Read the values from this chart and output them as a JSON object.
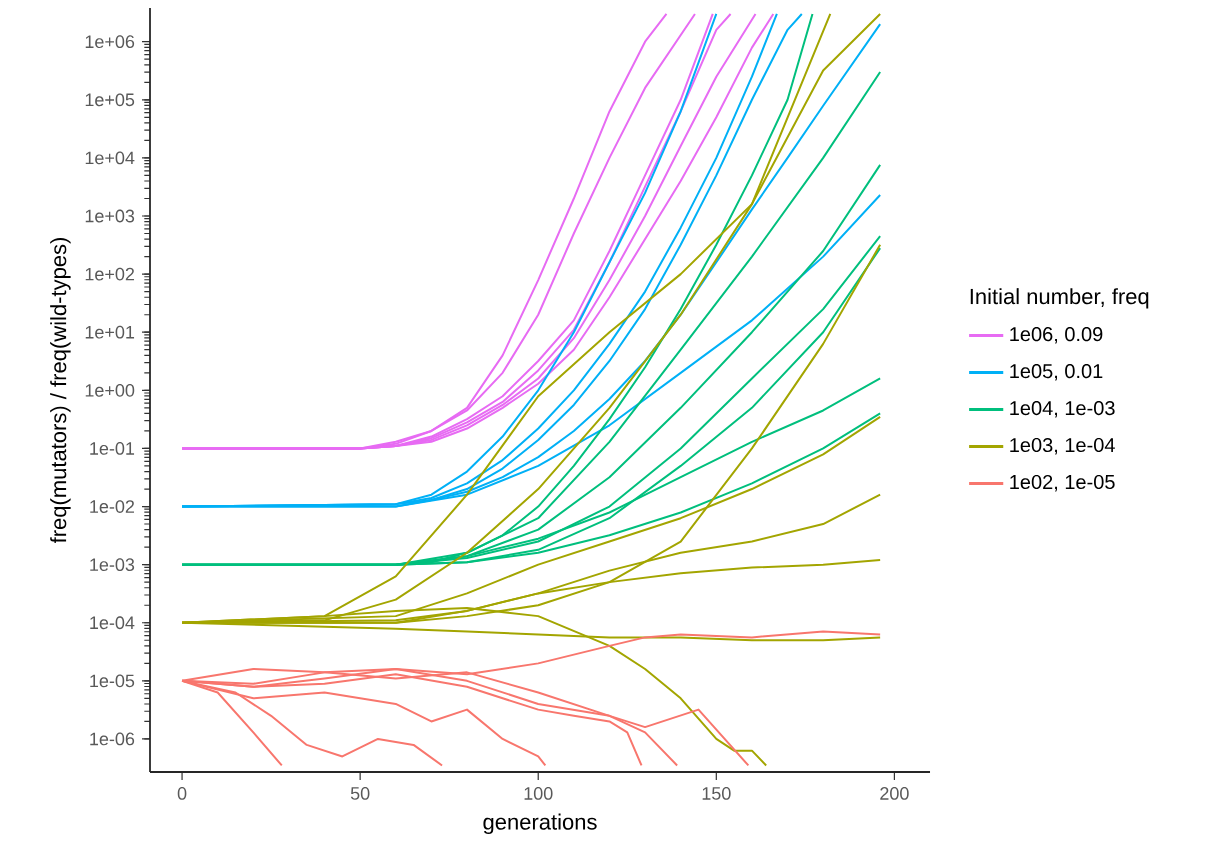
{
  "chart_data": {
    "type": "line",
    "xlabel": "generations",
    "ylabel": "freq(mutators) / freq(wild-types)",
    "legend_title": "Initial number, freq",
    "legend": "right",
    "log": "y",
    "grid": false,
    "xlim": [
      -9,
      210
    ],
    "xticks": [
      0,
      50,
      100,
      150,
      200
    ],
    "ylim": [
      2.7e-07,
      3800000.0
    ],
    "yticks": [
      {
        "value": 1e-06,
        "label": "1e-06"
      },
      {
        "value": 1e-05,
        "label": "1e-05"
      },
      {
        "value": 0.0001,
        "label": "1e-04"
      },
      {
        "value": 0.001,
        "label": "1e-03"
      },
      {
        "value": 0.01,
        "label": "1e-02"
      },
      {
        "value": 0.1,
        "label": "1e-01"
      },
      {
        "value": 1,
        "label": "1e+00"
      },
      {
        "value": 10,
        "label": "1e+01"
      },
      {
        "value": 100,
        "label": "1e+02"
      },
      {
        "value": 1000,
        "label": "1e+03"
      },
      {
        "value": 10000.0,
        "label": "1e+04"
      },
      {
        "value": 100000.0,
        "label": "1e+05"
      },
      {
        "value": 1000000.0,
        "label": "1e+06"
      }
    ],
    "series": [
      {
        "name": "1e06, 0.09",
        "color": "#e76bf3",
        "x": [
          0,
          50,
          60,
          70,
          80,
          90,
          100,
          110,
          120,
          130,
          136
        ],
        "values": [
          0.1,
          0.1,
          0.12,
          0.2,
          0.5,
          4,
          79,
          2000,
          63000.0,
          1000000.0,
          3000000.0
        ]
      },
      {
        "color": "#e76bf3",
        "x": [
          0,
          50,
          60,
          70,
          80,
          90,
          100,
          110,
          120,
          130,
          140,
          149
        ],
        "values": [
          0.1,
          0.1,
          0.11,
          0.16,
          0.32,
          0.79,
          3.2,
          16,
          250,
          5000,
          100000.0,
          3000000.0
        ]
      },
      {
        "color": "#e76bf3",
        "x": [
          0,
          50,
          60,
          70,
          80,
          90,
          100,
          110,
          120,
          130,
          140,
          150,
          154
        ],
        "values": [
          0.1,
          0.1,
          0.11,
          0.15,
          0.28,
          0.63,
          2.2,
          11,
          160,
          3200,
          63000.0,
          1600000.0,
          3000000.0
        ]
      },
      {
        "color": "#e76bf3",
        "x": [
          0,
          50,
          60,
          70,
          80,
          90,
          100,
          110,
          120,
          130,
          144
        ],
        "values": [
          0.1,
          0.1,
          0.13,
          0.2,
          0.45,
          2,
          20,
          500,
          10000.0,
          160000.0,
          3000000.0
        ]
      },
      {
        "color": "#e76bf3",
        "x": [
          0,
          50,
          60,
          70,
          80,
          90,
          100,
          110,
          120,
          130,
          140,
          150,
          161
        ],
        "values": [
          0.1,
          0.1,
          0.11,
          0.14,
          0.25,
          0.56,
          1.6,
          7.9,
          79,
          1000,
          16000.0,
          250000.0,
          3000000.0
        ]
      },
      {
        "color": "#e76bf3",
        "x": [
          0,
          50,
          60,
          70,
          80,
          90,
          100,
          110,
          120,
          130,
          140,
          150,
          160,
          166
        ],
        "values": [
          0.1,
          0.1,
          0.11,
          0.13,
          0.22,
          0.5,
          1.3,
          5,
          40,
          400,
          4000,
          50000.0,
          790000.0,
          3000000.0
        ]
      },
      {
        "name": "1e05, 0.01",
        "color": "#00b0f6",
        "x": [
          0,
          60,
          70,
          80,
          90,
          100,
          110,
          120,
          130,
          140,
          150
        ],
        "values": [
          0.01,
          0.011,
          0.016,
          0.04,
          0.16,
          1,
          10,
          160,
          2500,
          63000.0,
          3000000.0
        ]
      },
      {
        "color": "#00b0f6",
        "x": [
          0,
          60,
          70,
          80,
          90,
          100,
          110,
          120,
          130,
          140,
          150,
          160,
          167
        ],
        "values": [
          0.01,
          0.011,
          0.014,
          0.025,
          0.063,
          0.22,
          1,
          6.3,
          50,
          630,
          10000.0,
          250000.0,
          3000000.0
        ]
      },
      {
        "color": "#00b0f6",
        "x": [
          0,
          60,
          70,
          80,
          90,
          100,
          110,
          120,
          130,
          140,
          150,
          160,
          170,
          174
        ],
        "values": [
          0.01,
          0.011,
          0.013,
          0.02,
          0.045,
          0.14,
          0.56,
          3.2,
          25,
          320,
          5000,
          100000.0,
          1600000.0,
          3000000.0
        ]
      },
      {
        "color": "#00b0f6",
        "x": [
          0,
          60,
          70,
          80,
          90,
          100,
          110,
          120,
          130,
          140,
          150,
          160,
          170,
          180,
          196
        ],
        "values": [
          0.01,
          0.01,
          0.013,
          0.018,
          0.032,
          0.071,
          0.2,
          0.71,
          3.2,
          20,
          160,
          1300,
          10000.0,
          79000.0,
          2000000.0
        ]
      },
      {
        "color": "#00b0f6",
        "x": [
          0,
          60,
          80,
          100,
          120,
          140,
          160,
          180,
          196
        ],
        "values": [
          0.01,
          0.01,
          0.016,
          0.05,
          0.25,
          2,
          16,
          200,
          2300
        ]
      },
      {
        "name": "1e04, 1e-03",
        "color": "#00bf7d",
        "x": [
          0,
          60,
          70,
          80,
          90,
          100,
          110,
          120,
          130,
          140,
          150,
          160,
          170,
          177
        ],
        "values": [
          0.001,
          0.001,
          0.0011,
          0.0016,
          0.0032,
          0.01,
          0.05,
          0.32,
          2.5,
          25,
          320,
          5000,
          100000.0,
          3000000.0
        ]
      },
      {
        "color": "#00bf7d",
        "x": [
          0,
          60,
          80,
          100,
          120,
          140,
          160,
          180,
          196
        ],
        "values": [
          0.001,
          0.001,
          0.0016,
          0.0063,
          0.13,
          5,
          200,
          10000.0,
          300000.0
        ]
      },
      {
        "color": "#00bf7d",
        "x": [
          0,
          60,
          80,
          100,
          120,
          140,
          160,
          180,
          196
        ],
        "values": [
          0.001,
          0.001,
          0.0014,
          0.004,
          0.032,
          0.5,
          10,
          250,
          7600
        ]
      },
      {
        "color": "#00bf7d",
        "x": [
          0,
          60,
          80,
          100,
          120,
          140,
          160,
          180,
          196
        ],
        "values": [
          0.001,
          0.001,
          0.0013,
          0.0025,
          0.01,
          0.1,
          1.6,
          25,
          450
        ]
      },
      {
        "color": "#00bf7d",
        "x": [
          0,
          60,
          80,
          100,
          120,
          140,
          160,
          180,
          196
        ],
        "values": [
          0.001,
          0.001,
          0.0014,
          0.0028,
          0.0079,
          0.032,
          0.13,
          0.45,
          1.6
        ]
      },
      {
        "color": "#00bf7d",
        "x": [
          0,
          60,
          80,
          100,
          120,
          140,
          160,
          180,
          196
        ],
        "values": [
          0.001,
          0.001,
          0.0011,
          0.0016,
          0.0032,
          0.0079,
          0.025,
          0.1,
          0.4
        ]
      },
      {
        "color": "#00bf7d",
        "x": [
          0,
          60,
          80,
          100,
          120,
          140,
          160,
          180,
          196
        ],
        "values": [
          0.001,
          0.001,
          0.0011,
          0.0018,
          0.0063,
          0.05,
          0.5,
          10,
          280
        ]
      },
      {
        "name": "1e03, 1e-04",
        "color": "#a3a500",
        "x": [
          0,
          40,
          60,
          80,
          100,
          120,
          140,
          160,
          180,
          196
        ],
        "values": [
          0.0001,
          0.00011,
          0.00025,
          0.0016,
          0.02,
          0.5,
          20,
          1600,
          320000.0,
          3000000.0
        ]
      },
      {
        "color": "#a3a500",
        "x": [
          0,
          40,
          60,
          80,
          100,
          120,
          140,
          160,
          182
        ],
        "values": [
          0.0001,
          0.00013,
          0.00063,
          0.016,
          0.79,
          10,
          100,
          1600,
          3000000.0
        ]
      },
      {
        "color": "#a3a500",
        "x": [
          0,
          60,
          80,
          100,
          120,
          140,
          160,
          180,
          196
        ],
        "values": [
          0.0001,
          0.0001,
          0.00013,
          0.0002,
          0.0005,
          0.0025,
          0.1,
          6.3,
          320
        ]
      },
      {
        "color": "#a3a500",
        "x": [
          0,
          60,
          80,
          100,
          120,
          140,
          160,
          180,
          196
        ],
        "values": [
          0.0001,
          0.00011,
          0.00016,
          0.00032,
          0.00079,
          0.0016,
          0.0025,
          0.005,
          0.016
        ]
      },
      {
        "color": "#a3a500",
        "x": [
          0,
          60,
          80,
          100,
          120,
          140,
          160,
          180,
          196
        ],
        "values": [
          0.0001,
          0.0001,
          0.00016,
          0.00032,
          0.0005,
          0.00071,
          0.00089,
          0.001,
          0.0012
        ]
      },
      {
        "color": "#a3a500",
        "x": [
          0,
          60,
          80,
          100,
          120,
          140,
          160,
          180,
          196
        ],
        "values": [
          0.0001,
          7.9e-05,
          7.1e-05,
          6.3e-05,
          5.6e-05,
          5.6e-05,
          5e-05,
          5e-05,
          5.6e-05
        ]
      },
      {
        "color": "#a3a500",
        "x": [
          0,
          60,
          80,
          100,
          120,
          140,
          160,
          180,
          196
        ],
        "values": [
          0.0001,
          0.00013,
          0.00032,
          0.001,
          0.0025,
          0.0063,
          0.02,
          0.079,
          0.35
        ]
      },
      {
        "color": "#a3a500",
        "x": [
          0,
          40,
          60,
          80,
          100,
          120,
          130,
          140,
          150,
          155,
          160,
          164
        ],
        "values": [
          0.0001,
          0.00013,
          0.00016,
          0.00018,
          0.00013,
          4e-05,
          1.6e-05,
          5e-06,
          1e-06,
          6.3e-07,
          6.3e-07,
          3.5e-07
        ]
      },
      {
        "name": "1e02, 1e-05",
        "color": "#f8766d",
        "x": [
          0,
          20,
          40,
          60,
          80,
          100,
          120,
          130,
          140,
          160,
          180,
          196
        ],
        "values": [
          1e-05,
          8.9e-06,
          1.4e-05,
          1.6e-05,
          1.3e-05,
          2e-05,
          4e-05,
          5.6e-05,
          6.3e-05,
          5.6e-05,
          7.1e-05,
          6.3e-05
        ]
      },
      {
        "color": "#f8766d",
        "x": [
          0,
          10,
          20,
          28
        ],
        "values": [
          1e-05,
          6.3e-06,
          1.3e-06,
          3.5e-07
        ]
      },
      {
        "color": "#f8766d",
        "x": [
          0,
          15,
          25,
          35,
          45,
          55,
          65,
          73
        ],
        "values": [
          1e-05,
          6.3e-06,
          2.5e-06,
          7.9e-07,
          5e-07,
          1e-06,
          7.9e-07,
          3.5e-07
        ]
      },
      {
        "color": "#f8766d",
        "x": [
          0,
          20,
          40,
          60,
          70,
          80,
          90,
          100,
          102
        ],
        "values": [
          1e-05,
          5e-06,
          6.3e-06,
          4e-06,
          2e-06,
          3.2e-06,
          1e-06,
          5e-07,
          3.5e-07
        ]
      },
      {
        "color": "#f8766d",
        "x": [
          0,
          20,
          40,
          60,
          80,
          100,
          110,
          120,
          125,
          129
        ],
        "values": [
          1e-05,
          7.9e-06,
          8.9e-06,
          1.3e-05,
          7.9e-06,
          3.2e-06,
          2.5e-06,
          2e-06,
          1.3e-06,
          3.5e-07
        ]
      },
      {
        "color": "#f8766d",
        "x": [
          0,
          20,
          40,
          60,
          80,
          100,
          120,
          130,
          145,
          159
        ],
        "values": [
          1e-05,
          1.6e-05,
          1.4e-05,
          1.1e-05,
          1.4e-05,
          6.3e-06,
          2.5e-06,
          1.6e-06,
          3.2e-06,
          3.5e-07
        ]
      },
      {
        "color": "#f8766d",
        "x": [
          0,
          20,
          40,
          60,
          80,
          100,
          120,
          130,
          139
        ],
        "values": [
          1e-05,
          7.9e-06,
          1.1e-05,
          1.6e-05,
          1e-05,
          4e-06,
          2.5e-06,
          1.3e-06,
          3.5e-07
        ]
      }
    ]
  }
}
